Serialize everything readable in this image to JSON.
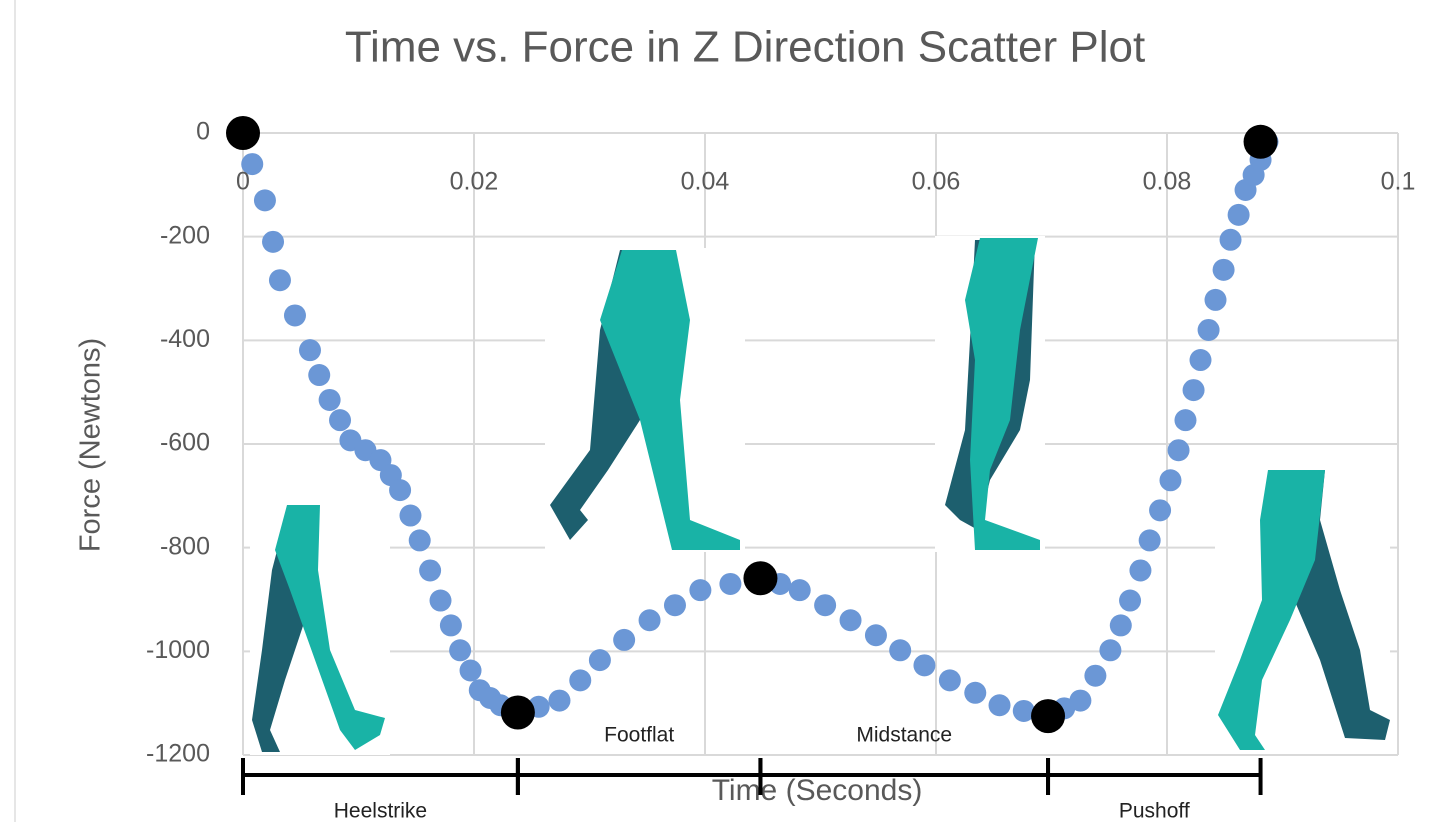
{
  "chart_data": {
    "type": "scatter",
    "title": "Time vs. Force in Z Direction Scatter Plot",
    "x_label": "Time (Seconds)",
    "y_label": "Force (Newtons)",
    "xlim": [
      0,
      0.1
    ],
    "xticks": [
      0,
      0.02,
      0.04,
      0.06,
      0.08,
      0.1
    ],
    "ylim": [
      -1200,
      0
    ],
    "yticks": [
      0,
      -200,
      -400,
      -600,
      -800,
      -1000,
      -1200
    ],
    "grid": true,
    "series": [
      {
        "color": "#6b97d6",
        "x": [
          0,
          0.0008,
          0.0019,
          0.0026,
          0.0032,
          0.0045,
          0.0058,
          0.0066,
          0.0075,
          0.0084,
          0.0093,
          0.0106,
          0.0119,
          0.0128,
          0.0136,
          0.0145,
          0.0153,
          0.0162,
          0.0171,
          0.018,
          0.0188,
          0.0197,
          0.0205,
          0.0214,
          0.0223,
          0.0238,
          0.0256,
          0.0274,
          0.0292,
          0.0309,
          0.033,
          0.0352,
          0.0374,
          0.0396,
          0.0422,
          0.0448,
          0.0465,
          0.0482,
          0.0504,
          0.0526,
          0.0548,
          0.0569,
          0.059,
          0.0612,
          0.0634,
          0.0655,
          0.0676,
          0.0697,
          0.0711,
          0.0725,
          0.0738,
          0.0751,
          0.076,
          0.0768,
          0.0777,
          0.0785,
          0.0794,
          0.0803,
          0.081,
          0.0816,
          0.0823,
          0.0829,
          0.0836,
          0.0842,
          0.0849,
          0.0855,
          0.0862,
          0.0868,
          0.0875,
          0.0881,
          0.0887
        ],
        "values": [
          0,
          -60,
          -130,
          -210,
          -284,
          -352,
          -419,
          -467,
          -515,
          -554,
          -593,
          -612,
          -631,
          -660,
          -689,
          -738,
          -786,
          -844,
          -902,
          -950,
          -998,
          -1037,
          -1075,
          -1090,
          -1104,
          -1118,
          -1107,
          -1095,
          -1056,
          -1017,
          -978,
          -940,
          -911,
          -882,
          -870,
          -859,
          -870,
          -882,
          -911,
          -940,
          -969,
          -998,
          -1027,
          -1056,
          -1080,
          -1104,
          -1115,
          -1125,
          -1110,
          -1095,
          -1047,
          -998,
          -950,
          -902,
          -844,
          -786,
          -728,
          -670,
          -612,
          -554,
          -496,
          -438,
          -380,
          -322,
          -264,
          -206,
          -158,
          -110,
          -81,
          -52,
          -17
        ]
      },
      {
        "color": "#000000",
        "x": [
          0,
          0.0238,
          0.0448,
          0.0697,
          0.0881
        ],
        "values": [
          0,
          -1118,
          -859,
          -1125,
          -17
        ]
      }
    ],
    "phases": [
      "Heelstrike",
      "Footflat",
      "Midstance",
      "Pushoff"
    ]
  }
}
